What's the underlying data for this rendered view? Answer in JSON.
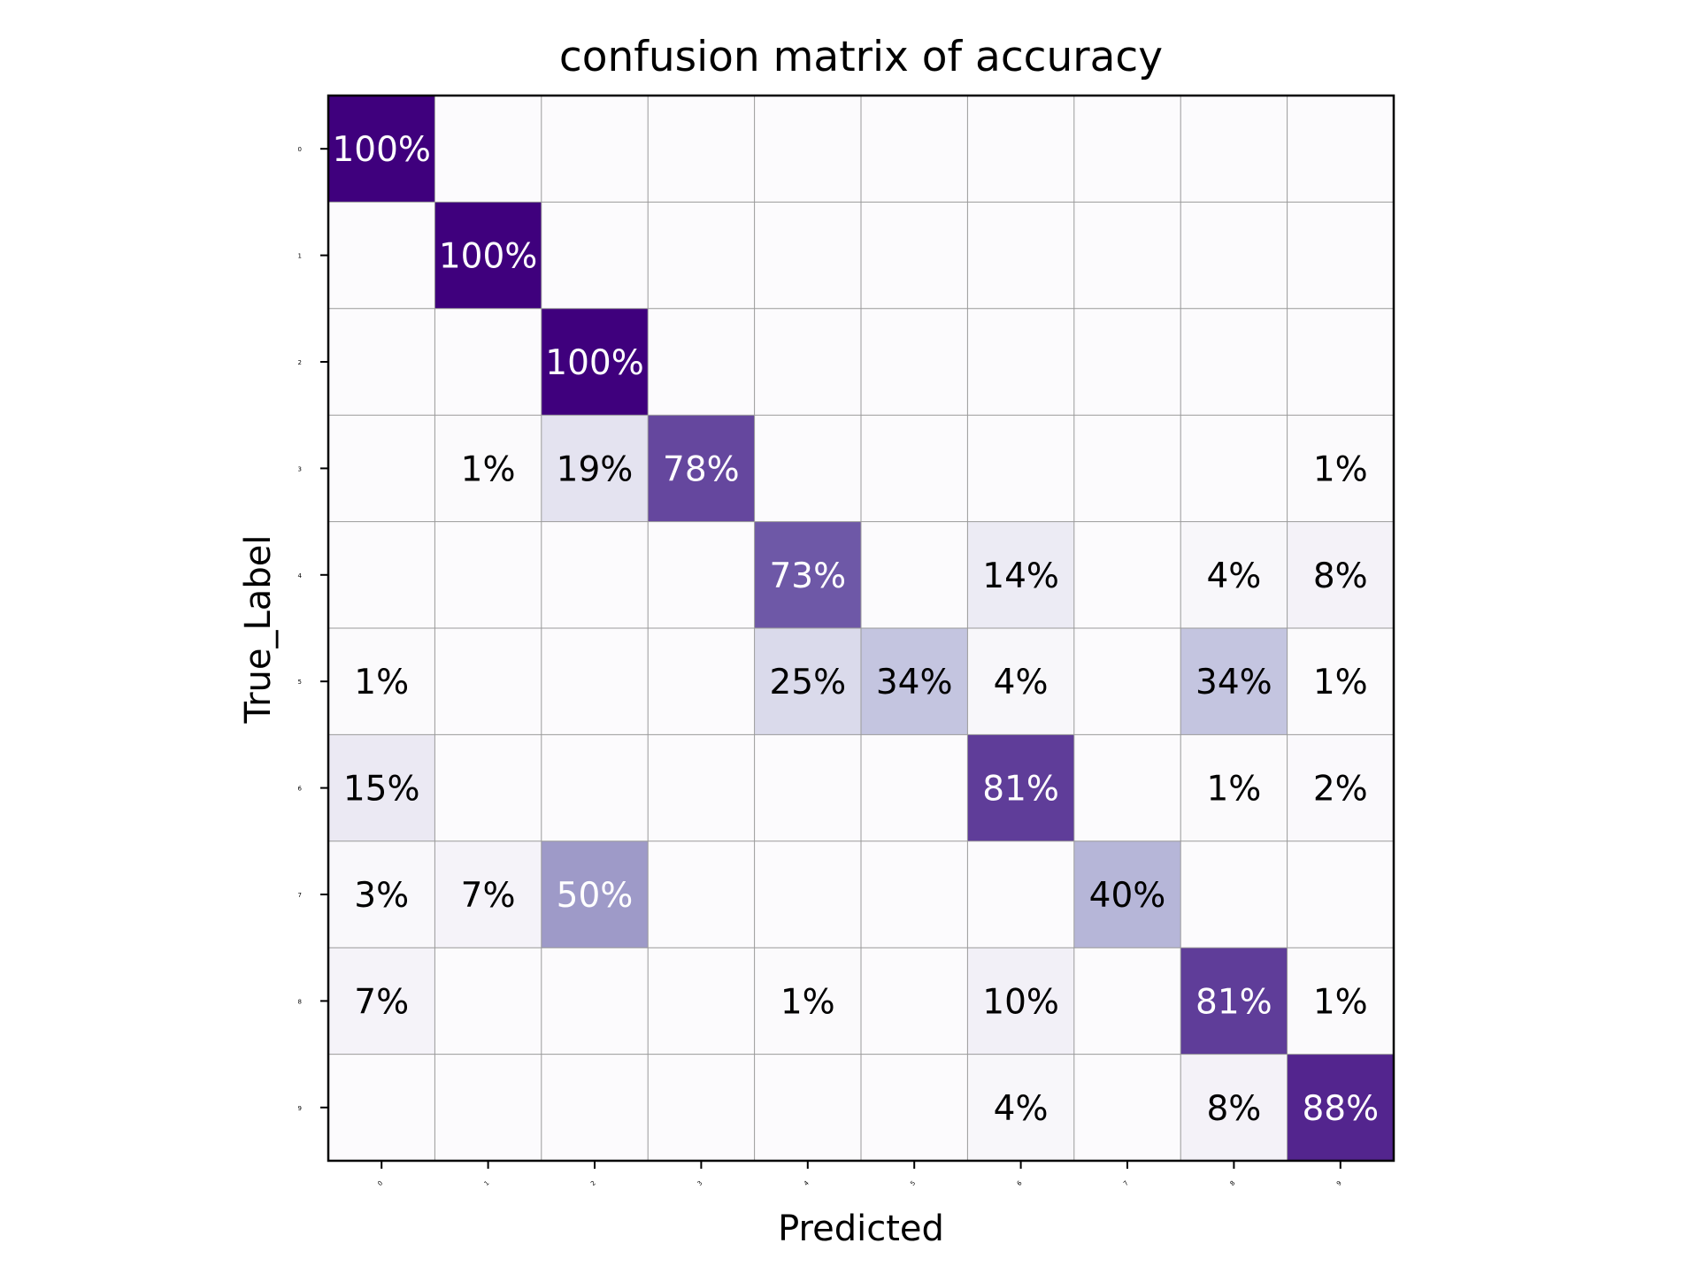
{
  "chart_data": {
    "type": "heatmap",
    "title": "confusion matrix of accuracy",
    "xlabel": "Predicted",
    "ylabel": "True_Label",
    "x_categories": [
      "0",
      "1",
      "2",
      "3",
      "4",
      "5",
      "6",
      "7",
      "8",
      "9"
    ],
    "y_categories": [
      "0",
      "1",
      "2",
      "3",
      "4",
      "5",
      "6",
      "7",
      "8",
      "9"
    ],
    "colormap": "Purples",
    "value_range": [
      0,
      100
    ],
    "grid": true,
    "values": [
      [
        100,
        0,
        0,
        0,
        0,
        0,
        0,
        0,
        0,
        0
      ],
      [
        0,
        100,
        0,
        0,
        0,
        0,
        0,
        0,
        0,
        0
      ],
      [
        0,
        0,
        100,
        0,
        0,
        0,
        0,
        0,
        0,
        0
      ],
      [
        0,
        1,
        19,
        78,
        0,
        0,
        0,
        0,
        0,
        1
      ],
      [
        0,
        0,
        0,
        0,
        73,
        0,
        14,
        0,
        4,
        8
      ],
      [
        1,
        0,
        0,
        0,
        25,
        34,
        4,
        0,
        34,
        1
      ],
      [
        15,
        0,
        0,
        0,
        0,
        0,
        81,
        0,
        1,
        2
      ],
      [
        3,
        7,
        50,
        0,
        0,
        0,
        0,
        40,
        0,
        0
      ],
      [
        7,
        0,
        0,
        0,
        1,
        0,
        10,
        0,
        81,
        1
      ],
      [
        0,
        0,
        0,
        0,
        0,
        0,
        4,
        0,
        8,
        88
      ]
    ],
    "labels": [
      [
        "100%",
        "",
        "",
        "",
        "",
        "",
        "",
        "",
        "",
        ""
      ],
      [
        "",
        "100%",
        "",
        "",
        "",
        "",
        "",
        "",
        "",
        ""
      ],
      [
        "",
        "",
        "100%",
        "",
        "",
        "",
        "",
        "",
        "",
        ""
      ],
      [
        "",
        "1%",
        "19%",
        "78%",
        "",
        "",
        "",
        "",
        "",
        "1%"
      ],
      [
        "",
        "",
        "",
        "",
        "73%",
        "",
        "14%",
        "",
        "4%",
        "8%"
      ],
      [
        "1%",
        "",
        "",
        "",
        "25%",
        "34%",
        "4%",
        "",
        "34%",
        "1%"
      ],
      [
        "15%",
        "",
        "",
        "",
        "",
        "",
        "81%",
        "",
        "1%",
        "2%"
      ],
      [
        "3%",
        "7%",
        "50%",
        "",
        "",
        "",
        "",
        "40%",
        "",
        ""
      ],
      [
        "7%",
        "",
        "",
        "",
        "1%",
        "",
        "10%",
        "",
        "81%",
        "1%"
      ],
      [
        "",
        "",
        "",
        "",
        "",
        "",
        "4%",
        "",
        "8%",
        "88%"
      ]
    ]
  }
}
